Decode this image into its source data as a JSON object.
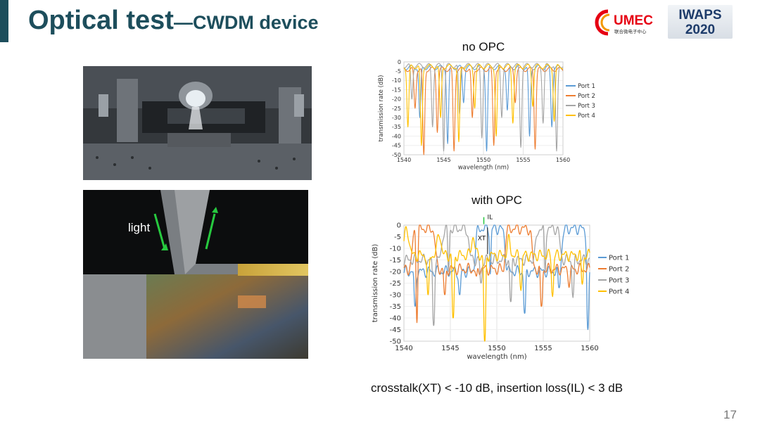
{
  "slide": {
    "title_main": "Optical test",
    "title_sub": "—CWDM device",
    "caption": "crosstalk(XT) < -10 dB, insertion loss(IL) < 3 dB",
    "page_number": "17",
    "photo_label": "light"
  },
  "logos": {
    "umec": {
      "name": "UMEC",
      "subtitle": "联合微电子中心"
    },
    "iwaps": {
      "line1": "IWAPS",
      "line2": "2020"
    }
  },
  "colors": {
    "accent": "#1d4e5c",
    "port1": "#5b9bd5",
    "port2": "#ed7d31",
    "port3": "#a5a5a5",
    "port4": "#ffc000",
    "arrow": "#27c93f"
  },
  "chart_data": [
    {
      "type": "line",
      "title": "no OPC",
      "xlabel": "wavelength (nm)",
      "ylabel": "transmission rate (dB)",
      "xlim": [
        1540,
        1560
      ],
      "ylim": [
        -50,
        0
      ],
      "xticks": [
        1540,
        1545,
        1550,
        1555,
        1560
      ],
      "yticks": [
        0,
        -5,
        -10,
        -15,
        -20,
        -25,
        -30,
        -35,
        -40,
        -45,
        -50
      ],
      "legend": "right",
      "series": [
        {
          "name": "Port 1",
          "color": "#5b9bd5",
          "base": -3,
          "dips": [
            [
              1542.0,
              -30
            ],
            [
              1545.5,
              -44
            ],
            [
              1547.5,
              -22
            ],
            [
              1550.4,
              -48
            ],
            [
              1553.0,
              -26
            ],
            [
              1555.8,
              -40
            ],
            [
              1558.6,
              -35
            ]
          ]
        },
        {
          "name": "Port 2",
          "color": "#ed7d31",
          "base": -4,
          "dips": [
            [
              1541.4,
              -25
            ],
            [
              1542.5,
              -50
            ],
            [
              1544.2,
              -38
            ],
            [
              1546.3,
              -48
            ],
            [
              1548.6,
              -30
            ],
            [
              1551.3,
              -45
            ],
            [
              1554.0,
              -22
            ],
            [
              1556.5,
              -47
            ]
          ]
        },
        {
          "name": "Port 3",
          "color": "#a5a5a5",
          "base": -2,
          "dips": [
            [
              1541.0,
              -20
            ],
            [
              1543.6,
              -35
            ],
            [
              1545.0,
              -48
            ],
            [
              1547.0,
              -28
            ],
            [
              1549.8,
              -41
            ],
            [
              1552.3,
              -30
            ],
            [
              1554.7,
              -46
            ],
            [
              1557.5,
              -33
            ],
            [
              1559.2,
              -48
            ]
          ]
        },
        {
          "name": "Port 4",
          "color": "#ffc000",
          "base": -2.5,
          "dips": [
            [
              1540.5,
              -35
            ],
            [
              1542.2,
              -45
            ],
            [
              1544.6,
              -30
            ],
            [
              1546.9,
              -43
            ],
            [
              1548.9,
              -25
            ],
            [
              1551.6,
              -40
            ],
            [
              1553.7,
              -33
            ],
            [
              1556.2,
              -24
            ],
            [
              1558.9,
              -32
            ]
          ]
        }
      ]
    },
    {
      "type": "line",
      "title": "with OPC",
      "xlabel": "wavelength (nm)",
      "ylabel": "transmission rate (dB)",
      "xlim": [
        1540,
        1560
      ],
      "ylim": [
        -50,
        0
      ],
      "xticks": [
        1540,
        1545,
        1550,
        1555,
        1560
      ],
      "yticks": [
        0,
        -5,
        -10,
        -15,
        -20,
        -25,
        -30,
        -35,
        -40,
        -45,
        -50
      ],
      "legend": "right",
      "annotations": [
        {
          "text": "IL",
          "x": 1548.6,
          "y": -2
        },
        {
          "text": "XT",
          "x": 1549.0,
          "y": -12
        }
      ],
      "series": [
        {
          "name": "Port 1",
          "color": "#5b9bd5",
          "pass": [
            [
              1547.7,
              1550.9
            ],
            [
              1557.0,
              1559.7
            ]
          ],
          "floor": -20,
          "dips": [
            [
              1541.2,
              -35
            ],
            [
              1546.0,
              -30
            ],
            [
              1549.3,
              -21
            ],
            [
              1553.0,
              -38
            ],
            [
              1556.7,
              -27
            ],
            [
              1559.8,
              -45
            ]
          ]
        },
        {
          "name": "Port 2",
          "color": "#ed7d31",
          "pass": [
            [
              1540.9,
              1543.4
            ],
            [
              1550.9,
              1553.8
            ]
          ],
          "floor": -19,
          "dips": [
            [
              1541.4,
              -42
            ],
            [
              1544.4,
              -30
            ],
            [
              1547.8,
              -22
            ],
            [
              1550.7,
              -20
            ],
            [
              1554.8,
              -35
            ],
            [
              1557.8,
              -25
            ]
          ]
        },
        {
          "name": "Port 3",
          "color": "#a5a5a5",
          "pass": [
            [
              1544.1,
              1547.0
            ],
            [
              1554.2,
              1556.8
            ]
          ],
          "floor": -15,
          "dips": [
            [
              1543.2,
              -43
            ],
            [
              1544.8,
              -20
            ],
            [
              1548.3,
              -25
            ],
            [
              1551.5,
              -33
            ],
            [
              1555.2,
              -20
            ],
            [
              1558.2,
              -30
            ]
          ]
        },
        {
          "name": "Port 4",
          "color": "#ffc000",
          "pass": [
            [
              1540.0,
              1540.6
            ],
            [
              1543.6,
              1544.0
            ],
            [
              1547.3,
              1547.6
            ],
            [
              1551.2,
              1551.4
            ]
          ],
          "floor": -13,
          "dips": [
            [
              1542.6,
              -30
            ],
            [
              1545.3,
              -40
            ],
            [
              1548.7,
              -50
            ],
            [
              1552.6,
              -27
            ],
            [
              1556.0,
              -30
            ],
            [
              1559.2,
              -25
            ]
          ]
        }
      ]
    }
  ]
}
